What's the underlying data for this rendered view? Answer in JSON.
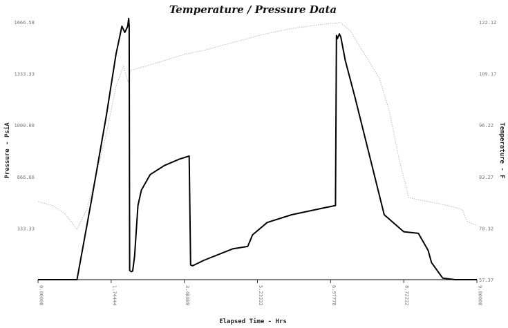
{
  "chart_data": {
    "type": "line",
    "title": "Temperature / Pressure Data",
    "xlabel": "Elapsed Time - Hrs",
    "ylabel_left": "Pressure - PsiA",
    "ylabel_right": "Temperature - F",
    "xlim": [
      0,
      9
    ],
    "ylim_left": [
      0,
      1666.58
    ],
    "ylim_right": [
      57.37,
      122.12
    ],
    "x_ticks": [
      "0.00000",
      "1.74444",
      "3.48889",
      "5.23333",
      "6.97778",
      "8.72222",
      "9.00000"
    ],
    "y_left_ticks": [
      "333.33",
      "666.66",
      "1000.00",
      "1333.33",
      "1666.58"
    ],
    "y_right_ticks": [
      "57.37",
      "70.32",
      "83.27",
      "96.22",
      "109.17",
      "122.12"
    ],
    "series": [
      {
        "axis": "left",
        "x": [
          0.0,
          0.8,
          1.1,
          1.4,
          1.6,
          1.72,
          1.78,
          1.84,
          1.86,
          1.87,
          1.88,
          1.91,
          1.94,
          1.98,
          2.05,
          2.12,
          2.3,
          2.6,
          2.9,
          3.1,
          3.13,
          3.17,
          3.4,
          4.0,
          4.3,
          4.4,
          4.7,
          5.2,
          5.8,
          6.1,
          6.12,
          6.14,
          6.18,
          6.21,
          6.3,
          6.5,
          6.8,
          7.1,
          7.5,
          7.8,
          8.0,
          8.07,
          8.3,
          8.55,
          8.62,
          9.0
        ],
        "values": [
          0,
          0,
          520,
          1060,
          1460,
          1640,
          1600,
          1640,
          1690,
          1640,
          60,
          52,
          55,
          150,
          480,
          580,
          680,
          740,
          780,
          800,
          95,
          90,
          125,
          200,
          215,
          290,
          370,
          420,
          460,
          480,
          1580,
          1560,
          1590,
          1570,
          1420,
          1180,
          800,
          420,
          310,
          300,
          190,
          110,
          10,
          0,
          0,
          0
        ]
      },
      {
        "axis": "right",
        "x": [
          0.0,
          0.3,
          0.55,
          0.8,
          1.0,
          1.2,
          1.4,
          1.6,
          1.75,
          1.85,
          1.9,
          2.2,
          2.6,
          3.0,
          3.4,
          4.0,
          4.6,
          5.2,
          5.8,
          6.2,
          6.4,
          6.7,
          7.0,
          7.2,
          7.4,
          7.6,
          8.0,
          8.4,
          8.7,
          8.8,
          9.0
        ],
        "values": [
          77,
          76,
          74,
          70,
          75,
          84,
          94,
          106,
          111,
          107,
          110,
          111,
          112.5,
          114,
          115,
          117,
          119,
          120.5,
          121.5,
          122,
          120,
          114,
          108,
          100,
          88,
          78,
          77,
          76,
          75,
          72,
          71
        ]
      }
    ]
  }
}
